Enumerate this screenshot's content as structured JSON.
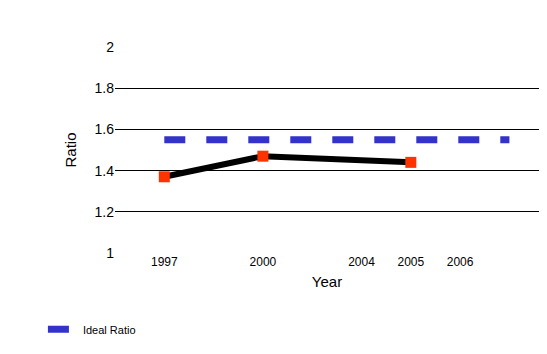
{
  "chart_data": {
    "type": "line",
    "x_label": "Year",
    "y_label": "Ratio",
    "categories": [
      "1997",
      null,
      "2000",
      null,
      "2004",
      "2005",
      "2006",
      null
    ],
    "series": [
      {
        "name": "Ideal Ratio",
        "color": "#3333cc",
        "line_style": "dash",
        "marker": "square",
        "values": [
          1.55,
          1.55,
          1.55,
          1.55,
          1.55,
          1.55,
          1.55,
          1.55
        ]
      },
      {
        "color": "#000000",
        "line_style": "solid",
        "marker": "square",
        "values": [
          1.37,
          null,
          1.47,
          null,
          null,
          1.44,
          null,
          null
        ]
      }
    ],
    "ylim": [
      1,
      2
    ],
    "yticks": [
      1,
      1.2,
      1.4,
      1.6,
      1.8,
      2
    ],
    "grid": true,
    "legend": "bottom left"
  }
}
